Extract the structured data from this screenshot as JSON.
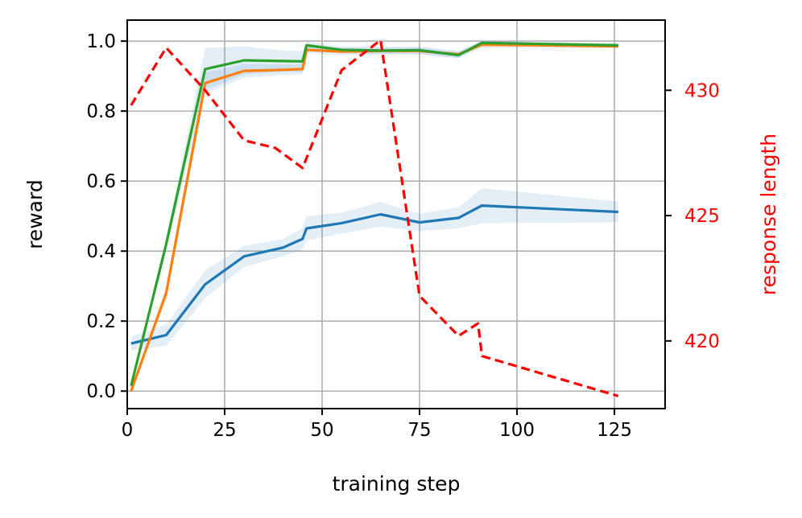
{
  "chart_data": {
    "type": "line",
    "title": "",
    "xlabel": "training step",
    "ylabel": "reward",
    "y2label": "response length",
    "xlim": [
      0,
      138
    ],
    "ylim": [
      -0.05,
      1.06
    ],
    "y2lim": [
      417.3,
      432.8
    ],
    "xticks": [
      0,
      25,
      50,
      75,
      100,
      125
    ],
    "yticks": [
      0.0,
      0.2,
      0.4,
      0.6,
      0.8,
      1.0
    ],
    "y2ticks": [
      420,
      425,
      430
    ],
    "grid": true,
    "legend": "none",
    "series": [
      {
        "color": "#1f77b4",
        "axis": "left",
        "band": true,
        "x": [
          1,
          10,
          20,
          30,
          40,
          45,
          46,
          55,
          65,
          75,
          85,
          91,
          126
        ],
        "y": [
          0.136,
          0.16,
          0.305,
          0.385,
          0.41,
          0.435,
          0.465,
          0.48,
          0.505,
          0.482,
          0.495,
          0.53,
          0.512
        ],
        "spread": [
          0.02,
          0.03,
          0.04,
          0.03,
          0.025,
          0.03,
          0.035,
          0.03,
          0.035,
          0.025,
          0.03,
          0.05,
          0.03
        ]
      },
      {
        "color": "#ff7f0e",
        "axis": "left",
        "band": true,
        "x": [
          1,
          10,
          20,
          30,
          40,
          45,
          46,
          55,
          65,
          75,
          85,
          91,
          126
        ],
        "y": [
          0.0,
          0.28,
          0.88,
          0.915,
          0.918,
          0.92,
          0.975,
          0.97,
          0.972,
          0.972,
          0.962,
          0.99,
          0.985
        ],
        "spread": [
          0.0,
          0.02,
          0.03,
          0.02,
          0.015,
          0.015,
          0.01,
          0.01,
          0.01,
          0.01,
          0.01,
          0.01,
          0.005
        ]
      },
      {
        "color": "#2ca02c",
        "axis": "left",
        "band": true,
        "x": [
          1,
          10,
          20,
          30,
          40,
          45,
          46,
          55,
          65,
          75,
          85,
          91,
          126
        ],
        "y": [
          0.015,
          0.42,
          0.92,
          0.945,
          0.943,
          0.942,
          0.988,
          0.975,
          0.973,
          0.974,
          0.96,
          0.995,
          0.988
        ],
        "spread": [
          0.0,
          0.02,
          0.06,
          0.04,
          0.03,
          0.03,
          0.01,
          0.01,
          0.01,
          0.01,
          0.01,
          0.005,
          0.005
        ]
      },
      {
        "color": "#ff0000",
        "axis": "right",
        "dashed": true,
        "x": [
          1,
          10,
          20,
          30,
          38,
          45,
          55,
          65,
          75,
          85,
          90,
          91,
          126
        ],
        "y": [
          429.4,
          431.7,
          430.0,
          428.0,
          427.7,
          426.9,
          430.8,
          432.0,
          421.8,
          420.2,
          420.7,
          419.4,
          417.8
        ]
      }
    ]
  }
}
